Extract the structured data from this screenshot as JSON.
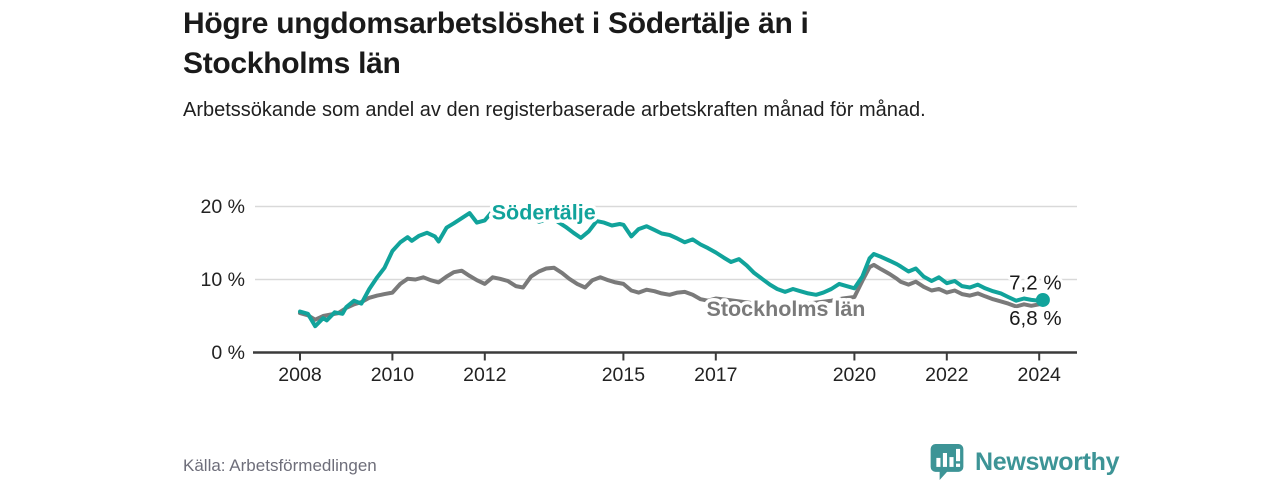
{
  "title": "Högre ungdomsarbetslöshet i Södertälje än i Stockholms län",
  "subtitle": "Arbetssökande som andel av den registerbaserade arbetskraften månad för månad.",
  "source": "Källa: Arbetsförmedlingen",
  "logo": {
    "text": "Newsworthy",
    "icon": "bar-chart-speech-bubble-icon",
    "color": "#3d9496"
  },
  "colors": {
    "sodertalje_line": "#11a39b",
    "stockholm_line": "#7a7a7a",
    "grid": "#d9d9d9",
    "axis": "#3b3b3b",
    "tick_text": "#222222",
    "end_label_text": "#1a1a1a"
  },
  "chart_data": {
    "type": "line",
    "x_unit": "decimal_year",
    "xlim": [
      2007.5,
      2024.8
    ],
    "ylim": [
      0,
      22
    ],
    "grid": "horizontal",
    "yticks": [
      {
        "v": 0,
        "label": "0 %"
      },
      {
        "v": 10,
        "label": "10 %"
      },
      {
        "v": 20,
        "label": "20 %"
      }
    ],
    "xticks": [
      {
        "v": 2008,
        "label": "2008"
      },
      {
        "v": 2010,
        "label": "2010"
      },
      {
        "v": 2012,
        "label": "2012"
      },
      {
        "v": 2015,
        "label": "2015"
      },
      {
        "v": 2017,
        "label": "2017"
      },
      {
        "v": 2020,
        "label": "2020"
      },
      {
        "v": 2022,
        "label": "2022"
      },
      {
        "v": 2024,
        "label": "2024"
      }
    ],
    "series": [
      {
        "name": "Stockholms län",
        "color": "#7a7a7a",
        "end_value_label": "6,8 %",
        "end_dot": false,
        "points": [
          [
            2008.0,
            5.4
          ],
          [
            2008.17,
            5.1
          ],
          [
            2008.33,
            4.5
          ],
          [
            2008.5,
            5.0
          ],
          [
            2008.67,
            5.2
          ],
          [
            2008.83,
            5.4
          ],
          [
            2009.0,
            6.1
          ],
          [
            2009.17,
            6.6
          ],
          [
            2009.33,
            6.9
          ],
          [
            2009.5,
            7.5
          ],
          [
            2009.67,
            7.8
          ],
          [
            2009.83,
            8.0
          ],
          [
            2010.0,
            8.2
          ],
          [
            2010.17,
            9.4
          ],
          [
            2010.33,
            10.1
          ],
          [
            2010.5,
            10.0
          ],
          [
            2010.67,
            10.3
          ],
          [
            2010.83,
            9.9
          ],
          [
            2011.0,
            9.6
          ],
          [
            2011.17,
            10.4
          ],
          [
            2011.33,
            11.0
          ],
          [
            2011.5,
            11.2
          ],
          [
            2011.67,
            10.5
          ],
          [
            2011.83,
            9.9
          ],
          [
            2012.0,
            9.4
          ],
          [
            2012.17,
            10.3
          ],
          [
            2012.33,
            10.1
          ],
          [
            2012.5,
            9.8
          ],
          [
            2012.67,
            9.1
          ],
          [
            2012.83,
            8.9
          ],
          [
            2013.0,
            10.4
          ],
          [
            2013.17,
            11.1
          ],
          [
            2013.33,
            11.5
          ],
          [
            2013.5,
            11.6
          ],
          [
            2013.67,
            10.9
          ],
          [
            2013.83,
            10.1
          ],
          [
            2014.0,
            9.4
          ],
          [
            2014.17,
            8.9
          ],
          [
            2014.33,
            9.9
          ],
          [
            2014.5,
            10.3
          ],
          [
            2014.67,
            9.9
          ],
          [
            2014.83,
            9.6
          ],
          [
            2015.0,
            9.4
          ],
          [
            2015.17,
            8.5
          ],
          [
            2015.33,
            8.2
          ],
          [
            2015.5,
            8.6
          ],
          [
            2015.67,
            8.4
          ],
          [
            2015.83,
            8.1
          ],
          [
            2016.0,
            7.9
          ],
          [
            2016.17,
            8.2
          ],
          [
            2016.33,
            8.3
          ],
          [
            2016.5,
            7.9
          ],
          [
            2016.67,
            7.3
          ],
          [
            2016.83,
            7.1
          ],
          [
            2017.0,
            7.4
          ],
          [
            2017.25,
            7.2
          ],
          [
            2017.5,
            7.0
          ],
          [
            2017.75,
            6.8
          ],
          [
            2018.0,
            6.7
          ],
          [
            2018.25,
            6.5
          ],
          [
            2018.5,
            6.4
          ],
          [
            2018.75,
            6.6
          ],
          [
            2019.0,
            6.7
          ],
          [
            2019.25,
            6.9
          ],
          [
            2019.5,
            7.1
          ],
          [
            2019.75,
            7.4
          ],
          [
            2020.0,
            7.6
          ],
          [
            2020.17,
            9.8
          ],
          [
            2020.33,
            11.7
          ],
          [
            2020.42,
            12.0
          ],
          [
            2020.58,
            11.4
          ],
          [
            2020.75,
            10.8
          ],
          [
            2020.92,
            10.1
          ],
          [
            2021.0,
            9.7
          ],
          [
            2021.17,
            9.3
          ],
          [
            2021.33,
            9.7
          ],
          [
            2021.5,
            9.0
          ],
          [
            2021.67,
            8.5
          ],
          [
            2021.83,
            8.7
          ],
          [
            2022.0,
            8.2
          ],
          [
            2022.17,
            8.5
          ],
          [
            2022.33,
            8.0
          ],
          [
            2022.5,
            7.8
          ],
          [
            2022.67,
            8.1
          ],
          [
            2022.83,
            7.7
          ],
          [
            2023.0,
            7.3
          ],
          [
            2023.17,
            7.0
          ],
          [
            2023.33,
            6.7
          ],
          [
            2023.5,
            6.3
          ],
          [
            2023.67,
            6.6
          ],
          [
            2023.83,
            6.4
          ],
          [
            2024.0,
            6.6
          ],
          [
            2024.08,
            6.8
          ]
        ]
      },
      {
        "name": "Södertälje",
        "color": "#11a39b",
        "end_value_label": "7,2 %",
        "end_dot": true,
        "points": [
          [
            2008.0,
            5.6
          ],
          [
            2008.17,
            5.3
          ],
          [
            2008.33,
            3.6
          ],
          [
            2008.5,
            4.7
          ],
          [
            2008.58,
            4.4
          ],
          [
            2008.75,
            5.5
          ],
          [
            2008.92,
            5.3
          ],
          [
            2009.0,
            6.2
          ],
          [
            2009.17,
            7.1
          ],
          [
            2009.33,
            6.7
          ],
          [
            2009.5,
            8.7
          ],
          [
            2009.67,
            10.3
          ],
          [
            2009.83,
            11.6
          ],
          [
            2010.0,
            13.9
          ],
          [
            2010.17,
            15.1
          ],
          [
            2010.33,
            15.8
          ],
          [
            2010.42,
            15.3
          ],
          [
            2010.58,
            16.0
          ],
          [
            2010.75,
            16.4
          ],
          [
            2010.92,
            15.9
          ],
          [
            2011.0,
            15.2
          ],
          [
            2011.17,
            17.1
          ],
          [
            2011.33,
            17.7
          ],
          [
            2011.5,
            18.4
          ],
          [
            2011.67,
            19.1
          ],
          [
            2011.83,
            17.8
          ],
          [
            2012.0,
            18.1
          ],
          [
            2012.17,
            19.4
          ],
          [
            2012.33,
            18.2
          ],
          [
            2012.5,
            20.2
          ],
          [
            2012.67,
            18.8
          ],
          [
            2012.83,
            18.3
          ],
          [
            2013.0,
            18.7
          ],
          [
            2013.17,
            17.9
          ],
          [
            2013.33,
            18.2
          ],
          [
            2013.42,
            20.0
          ],
          [
            2013.58,
            17.9
          ],
          [
            2013.75,
            17.2
          ],
          [
            2013.92,
            16.4
          ],
          [
            2014.08,
            15.7
          ],
          [
            2014.25,
            16.6
          ],
          [
            2014.42,
            18.0
          ],
          [
            2014.58,
            17.8
          ],
          [
            2014.75,
            17.4
          ],
          [
            2014.92,
            17.6
          ],
          [
            2015.0,
            17.5
          ],
          [
            2015.17,
            15.9
          ],
          [
            2015.33,
            16.9
          ],
          [
            2015.5,
            17.3
          ],
          [
            2015.67,
            16.8
          ],
          [
            2015.83,
            16.3
          ],
          [
            2016.0,
            16.1
          ],
          [
            2016.17,
            15.6
          ],
          [
            2016.33,
            15.1
          ],
          [
            2016.5,
            15.5
          ],
          [
            2016.67,
            14.8
          ],
          [
            2016.83,
            14.3
          ],
          [
            2017.0,
            13.7
          ],
          [
            2017.17,
            13.0
          ],
          [
            2017.33,
            12.4
          ],
          [
            2017.5,
            12.8
          ],
          [
            2017.67,
            11.9
          ],
          [
            2017.83,
            10.9
          ],
          [
            2018.0,
            10.1
          ],
          [
            2018.17,
            9.3
          ],
          [
            2018.33,
            8.7
          ],
          [
            2018.5,
            8.3
          ],
          [
            2018.67,
            8.7
          ],
          [
            2018.83,
            8.4
          ],
          [
            2019.0,
            8.1
          ],
          [
            2019.17,
            7.9
          ],
          [
            2019.33,
            8.2
          ],
          [
            2019.5,
            8.7
          ],
          [
            2019.67,
            9.4
          ],
          [
            2019.83,
            9.1
          ],
          [
            2020.0,
            8.8
          ],
          [
            2020.17,
            10.4
          ],
          [
            2020.33,
            12.9
          ],
          [
            2020.42,
            13.5
          ],
          [
            2020.58,
            13.1
          ],
          [
            2020.75,
            12.6
          ],
          [
            2020.92,
            12.1
          ],
          [
            2021.0,
            11.8
          ],
          [
            2021.17,
            11.1
          ],
          [
            2021.33,
            11.5
          ],
          [
            2021.5,
            10.4
          ],
          [
            2021.67,
            9.8
          ],
          [
            2021.83,
            10.3
          ],
          [
            2022.0,
            9.5
          ],
          [
            2022.17,
            9.8
          ],
          [
            2022.33,
            9.1
          ],
          [
            2022.5,
            8.9
          ],
          [
            2022.67,
            9.3
          ],
          [
            2022.83,
            8.8
          ],
          [
            2023.0,
            8.4
          ],
          [
            2023.17,
            8.1
          ],
          [
            2023.33,
            7.6
          ],
          [
            2023.5,
            7.1
          ],
          [
            2023.67,
            7.4
          ],
          [
            2023.83,
            7.2
          ],
          [
            2024.0,
            7.1
          ],
          [
            2024.08,
            7.2
          ]
        ]
      }
    ],
    "series_labels": [
      {
        "text": "Södertälje",
        "t": 2012.15,
        "v": 18.2,
        "color": "#11a39b"
      },
      {
        "text": "Stockholms län",
        "t": 2016.8,
        "v": 5.0,
        "color": "#7a7a7a"
      }
    ],
    "end_labels": [
      {
        "text": "7,2 %",
        "t": 2023.35,
        "v": 8.6
      },
      {
        "text": "6,8 %",
        "t": 2023.35,
        "v": 3.8
      }
    ]
  }
}
